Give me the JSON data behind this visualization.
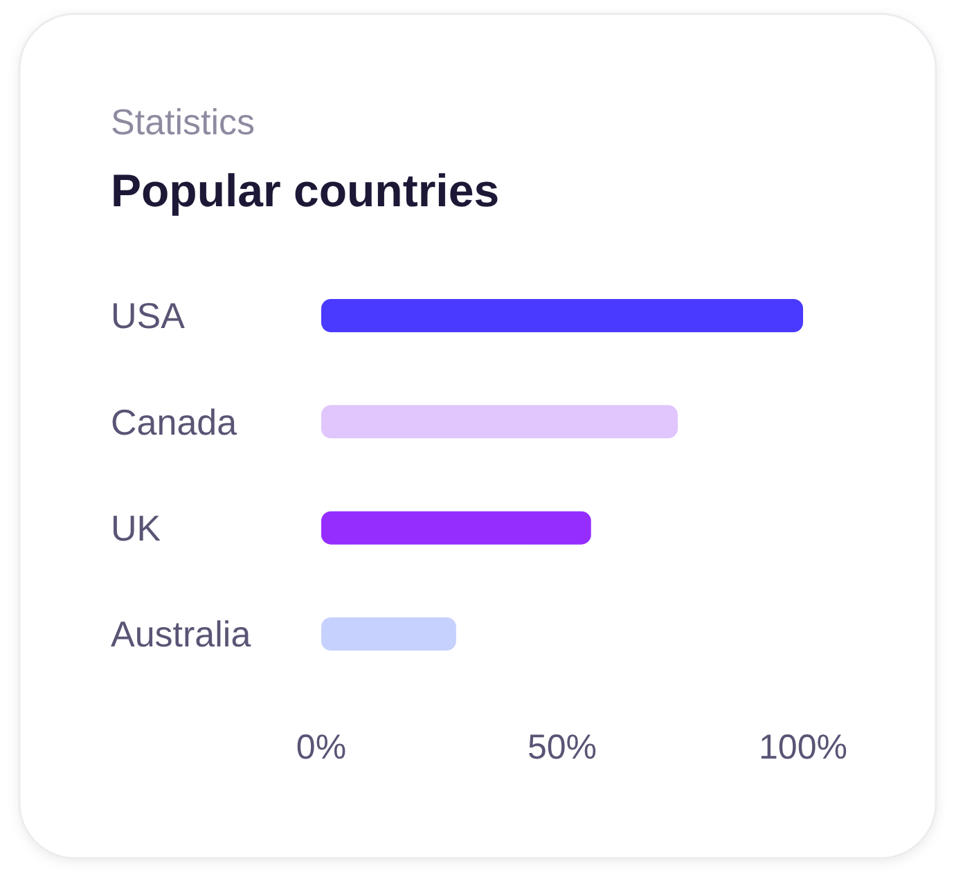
{
  "chart_data": {
    "type": "bar",
    "orientation": "horizontal",
    "subtitle": "Statistics",
    "title": "Popular countries",
    "categories": [
      "USA",
      "Canada",
      "UK",
      "Australia"
    ],
    "values": [
      100,
      74,
      56,
      28
    ],
    "colors": [
      "#4a3aff",
      "#e0c6fd",
      "#962dff",
      "#c6d2fd"
    ],
    "xlim": [
      0,
      100
    ],
    "xticks": [
      {
        "value": 0,
        "label": "0%"
      },
      {
        "value": 50,
        "label": "50%"
      },
      {
        "value": 100,
        "label": "100%"
      }
    ],
    "grid": false
  }
}
